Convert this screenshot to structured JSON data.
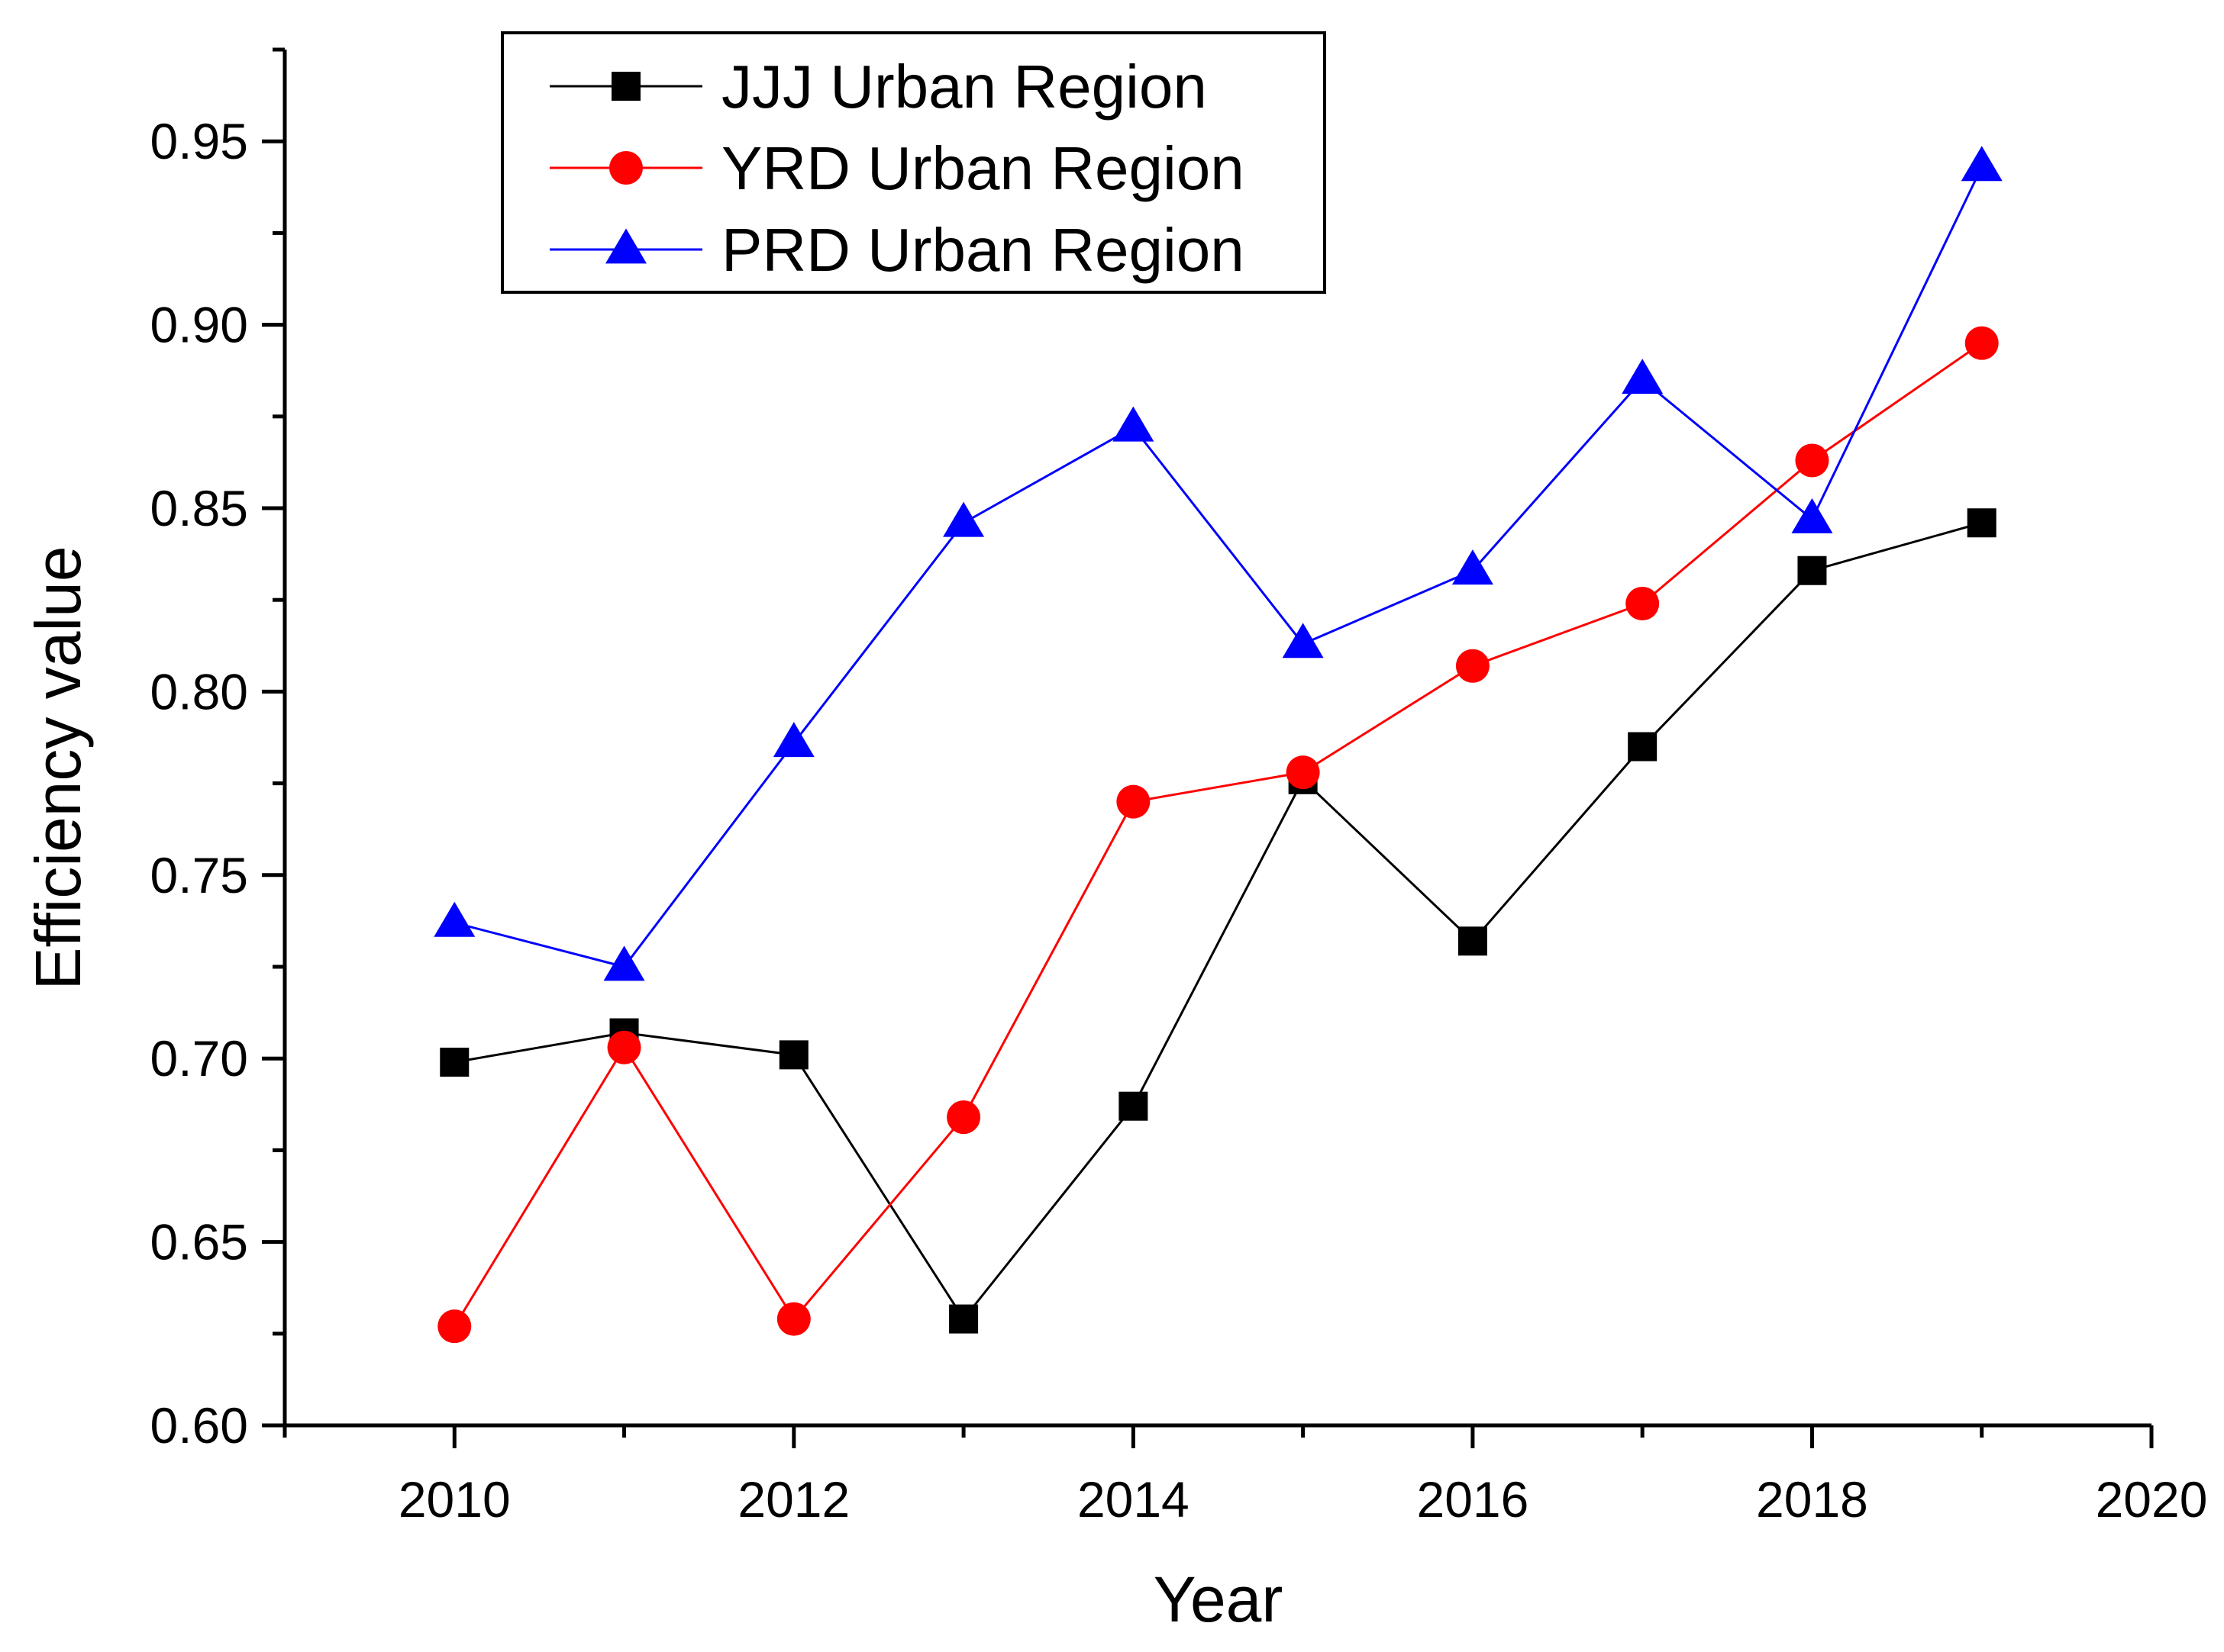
{
  "chart_data": {
    "type": "line",
    "title": "",
    "xlabel": "Year",
    "ylabel": "Efficiency value",
    "xlim": [
      2009,
      2020
    ],
    "ylim": [
      0.6,
      0.975
    ],
    "xticks": [
      2010,
      2012,
      2014,
      2016,
      2018,
      2020
    ],
    "xtick_labels": [
      "2010",
      "2012",
      "2014",
      "2016",
      "2018",
      "2020"
    ],
    "yticks": [
      0.6,
      0.65,
      0.7,
      0.75,
      0.8,
      0.85,
      0.9,
      0.95
    ],
    "ytick_labels": [
      "0.60",
      "0.65",
      "0.70",
      "0.75",
      "0.80",
      "0.85",
      "0.90",
      "0.95"
    ],
    "x": [
      2010,
      2011,
      2012,
      2013,
      2014,
      2015,
      2016,
      2017,
      2018,
      2019
    ],
    "legend_position": "top-left",
    "grid": false,
    "series": [
      {
        "name": "JJJ Urban Region",
        "color": "#000000",
        "marker": "square",
        "values": [
          0.699,
          0.707,
          0.701,
          0.629,
          0.687,
          0.776,
          0.732,
          0.785,
          0.833,
          0.846
        ]
      },
      {
        "name": "YRD Urban Region",
        "color": "#ff0000",
        "marker": "circle",
        "values": [
          0.627,
          0.703,
          0.629,
          0.684,
          0.77,
          0.778,
          0.807,
          0.824,
          0.863,
          0.895
        ]
      },
      {
        "name": "PRD Urban Region",
        "color": "#0000ff",
        "marker": "triangle",
        "values": [
          0.737,
          0.725,
          0.786,
          0.846,
          0.872,
          0.813,
          0.833,
          0.885,
          0.847,
          0.943
        ]
      }
    ]
  }
}
